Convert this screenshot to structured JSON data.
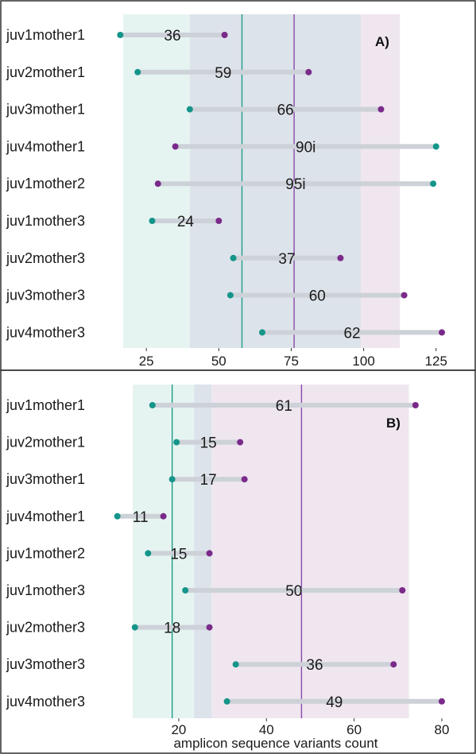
{
  "chart_data": [
    {
      "type": "dumbbell",
      "panel_label": "A)",
      "xlabel": "",
      "xlim": [
        17,
        130
      ],
      "xticks": [
        25,
        50,
        75,
        100,
        125
      ],
      "colors": {
        "juvenile": "#14958a",
        "mother": "#7a2a8a",
        "connector": "#cdd1d8"
      },
      "bands": [
        {
          "from": 17,
          "to": 40,
          "color": "#e6f4f1"
        },
        {
          "from": 40,
          "to": 99,
          "color": "#dde3ea"
        },
        {
          "from": 99,
          "to": 112.5,
          "color": "#efe6f0"
        }
      ],
      "vlines": [
        {
          "x": 58,
          "color": "#1a9c8a"
        },
        {
          "x": 76,
          "color": "#8a4aa8"
        }
      ],
      "rows": [
        {
          "label": "juv1mother1",
          "juvenile": 16,
          "mother": 52,
          "value_label": "36"
        },
        {
          "label": "juv2mother1",
          "juvenile": 22,
          "mother": 81,
          "value_label": "59"
        },
        {
          "label": "juv3mother1",
          "juvenile": 40,
          "mother": 106,
          "value_label": "66"
        },
        {
          "label": "juv4mother1",
          "juvenile": 125,
          "mother": 35,
          "value_label": "90i"
        },
        {
          "label": "juv1mother2",
          "juvenile": 124,
          "mother": 29,
          "value_label": "95i"
        },
        {
          "label": "juv1mother3",
          "juvenile": 27,
          "mother": 50,
          "value_label": "24"
        },
        {
          "label": "juv2mother3",
          "juvenile": 55,
          "mother": 92,
          "value_label": "37"
        },
        {
          "label": "juv3mother3",
          "juvenile": 54,
          "mother": 114,
          "value_label": "60"
        },
        {
          "label": "juv4mother3",
          "juvenile": 65,
          "mother": 127,
          "value_label": "62"
        }
      ]
    },
    {
      "type": "dumbbell",
      "panel_label": "B)",
      "xlabel": "amplicon sequence variants count",
      "xlim": [
        9.5,
        82
      ],
      "xticks": [
        20,
        40,
        60,
        80
      ],
      "colors": {
        "juvenile": "#14958a",
        "mother": "#7a2a8a",
        "connector": "#cdd1d8"
      },
      "bands": [
        {
          "from": 9.5,
          "to": 23.5,
          "color": "#e6f4f1"
        },
        {
          "from": 23.5,
          "to": 27.5,
          "color": "#dde3ea"
        },
        {
          "from": 27.5,
          "to": 72.5,
          "color": "#efe6f0"
        }
      ],
      "vlines": [
        {
          "x": 18.5,
          "color": "#1a9c8a"
        },
        {
          "x": 48,
          "color": "#8a4aa8"
        }
      ],
      "rows": [
        {
          "label": "juv1mother1",
          "juvenile": 14,
          "mother": 74,
          "value_label": "61"
        },
        {
          "label": "juv2mother1",
          "juvenile": 19.5,
          "mother": 34,
          "value_label": "15"
        },
        {
          "label": "juv3mother1",
          "juvenile": 18.5,
          "mother": 35,
          "value_label": "17"
        },
        {
          "label": "juv4mother1",
          "juvenile": 6,
          "mother": 16.5,
          "value_label": "11"
        },
        {
          "label": "juv1mother2",
          "juvenile": 13,
          "mother": 27,
          "value_label": "15"
        },
        {
          "label": "juv1mother3",
          "juvenile": 21.5,
          "mother": 71,
          "value_label": "50"
        },
        {
          "label": "juv2mother3",
          "juvenile": 10,
          "mother": 27,
          "value_label": "18"
        },
        {
          "label": "juv3mother3",
          "juvenile": 33,
          "mother": 69,
          "value_label": "36"
        },
        {
          "label": "juv4mother3",
          "juvenile": 31,
          "mother": 80,
          "value_label": "49"
        }
      ]
    }
  ]
}
